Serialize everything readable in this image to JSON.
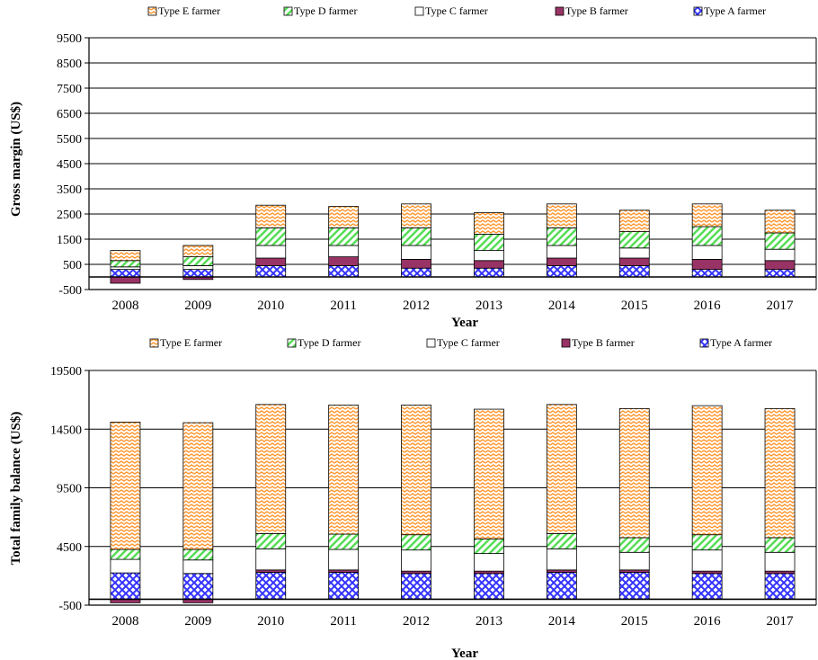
{
  "chart_data": [
    {
      "type": "bar",
      "stacked": true,
      "xlabel": "Year",
      "ylabel": "Gross margin (US$)",
      "ylim": [
        -500,
        9500
      ],
      "yticks": [
        -500,
        500,
        1500,
        2500,
        3500,
        4500,
        5500,
        6500,
        7500,
        8500,
        9500
      ],
      "grid": true,
      "legend_position": "top",
      "categories": [
        "2008",
        "2009",
        "2010",
        "2011",
        "2012",
        "2013",
        "2014",
        "2015",
        "2016",
        "2017"
      ],
      "series": [
        {
          "name": "Type A farmer",
          "values": [
            300,
            300,
            450,
            450,
            350,
            350,
            450,
            450,
            300,
            300
          ]
        },
        {
          "name": "Type B farmer",
          "values": [
            -250,
            -100,
            300,
            350,
            350,
            300,
            300,
            300,
            400,
            350
          ]
        },
        {
          "name": "Type C farmer",
          "values": [
            100,
            150,
            500,
            450,
            550,
            400,
            500,
            400,
            550,
            450
          ]
        },
        {
          "name": "Type D farmer",
          "values": [
            250,
            350,
            700,
            700,
            700,
            650,
            700,
            650,
            750,
            650
          ]
        },
        {
          "name": "Type E farmer",
          "values": [
            400,
            450,
            900,
            850,
            950,
            850,
            950,
            850,
            900,
            900
          ]
        }
      ]
    },
    {
      "type": "bar",
      "stacked": true,
      "xlabel": "Year",
      "ylabel": "Total family balance (US$)",
      "ylim": [
        -500,
        19500
      ],
      "yticks": [
        -500,
        4500,
        9500,
        14500,
        19500
      ],
      "grid": true,
      "legend_position": "top",
      "categories": [
        "2008",
        "2009",
        "2010",
        "2011",
        "2012",
        "2013",
        "2014",
        "2015",
        "2016",
        "2017"
      ],
      "series": [
        {
          "name": "Type A farmer",
          "values": [
            2250,
            2200,
            2300,
            2300,
            2200,
            2200,
            2300,
            2300,
            2200,
            2200
          ]
        },
        {
          "name": "Type B farmer",
          "values": [
            -300,
            -300,
            200,
            200,
            200,
            200,
            200,
            200,
            200,
            200
          ]
        },
        {
          "name": "Type C farmer",
          "values": [
            1150,
            1150,
            1800,
            1750,
            1800,
            1500,
            1800,
            1500,
            1800,
            1600
          ]
        },
        {
          "name": "Type D farmer",
          "values": [
            850,
            900,
            1300,
            1300,
            1300,
            1250,
            1300,
            1250,
            1300,
            1250
          ]
        },
        {
          "name": "Type E farmer",
          "values": [
            10850,
            10800,
            11000,
            11000,
            11050,
            11050,
            11000,
            11000,
            11000,
            11000
          ]
        }
      ]
    }
  ],
  "legend_order": [
    "Type E farmer",
    "Type D farmer",
    "Type C farmer",
    "Type B farmer",
    "Type A farmer"
  ],
  "colors": {
    "Type A farmer": "#3333ff",
    "Type B farmer": "#993366",
    "Type C farmer": "#ffffff",
    "Type D farmer": "#66ee66",
    "Type E farmer": "#ffaa44"
  }
}
